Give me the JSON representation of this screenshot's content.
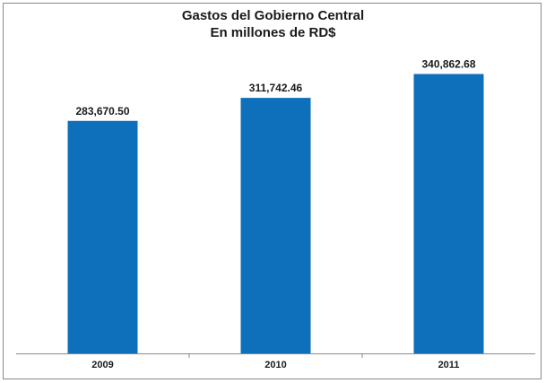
{
  "chart_data": {
    "type": "bar",
    "title": "Gastos del Gobierno Central",
    "subtitle": "En millones de RD$",
    "categories": [
      "2009",
      "2010",
      "2011"
    ],
    "values": [
      283670.5,
      311742.46,
      340862.68
    ],
    "value_labels": [
      "283,670.50",
      "311,742.46",
      "340,862.68"
    ],
    "ylim": [
      0,
      360000
    ],
    "grid": false,
    "legend": "none",
    "bar_color": "#0E6FBA"
  }
}
